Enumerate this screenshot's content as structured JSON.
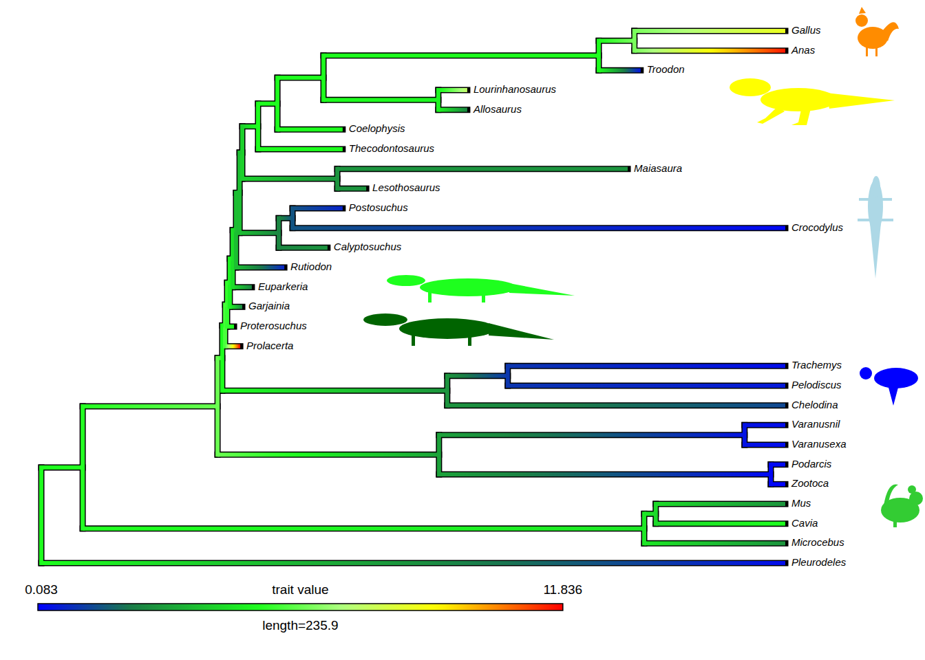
{
  "chart_data": {
    "type": "tree",
    "color_range": [
      0.083,
      11.836
    ],
    "color_label": "trait value",
    "scale_bar": {
      "value": 235.9,
      "label": "length=235.9"
    },
    "tree": {
      "depth": 0,
      "value": 5.0,
      "children": [
        {
          "depth": 18.6,
          "value": 5.1,
          "children": [
            {
              "depth": 79.2,
              "value": 6.0,
              "children": [
                {
                  "depth": 81.3,
                  "value": 5.0,
                  "children": [
                    {
                      "depth": 82.6,
                      "value": 5.6,
                      "children": [
                        {
                          "depth": 83.5,
                          "value": 5.3,
                          "children": [
                            {
                              "depth": 84.7,
                              "value": 4.8,
                              "children": [
                                {
                                  "depth": 86.0,
                                  "value": 4.3,
                                  "children": [
                                    {
                                      "depth": 87.5,
                                      "value": 3.6,
                                      "children": [
                                        {
                                          "depth": 89.1,
                                          "value": 3.6,
                                          "children": [
                                            {
                                              "depth": 90.3,
                                              "value": 4.0,
                                              "children": [
                                                {
                                                  "depth": 97.4,
                                                  "value": 5.0,
                                                  "children": [
                                                    {
                                                      "depth": 106.1,
                                                      "value": 5.0,
                                                      "children": [
                                                        {
                                                          "depth": 126.8,
                                                          "value": 5.0,
                                                          "children": [
                                                            {
                                                              "depth": 250.5,
                                                              "value": 5.0,
                                                              "children": [
                                                                {
                                                                  "depth": 266.5,
                                                                  "value": 6.2,
                                                                  "children": [
                                                                    {
                                                                      "label": "Gallus",
                                                                      "depth": 334.3,
                                                                      "value": 8.5
                                                                    },
                                                                    {
                                                                      "label": "Anas",
                                                                      "depth": 334.3,
                                                                      "value": 11.6
                                                                    }
                                                                  ]
                                                                },
                                                                {
                                                                  "label": "Troodon",
                                                                  "depth": 269.3,
                                                                  "value": 0.4
                                                                }
                                                              ]
                                                            },
                                                            {
                                                              "depth": 178.4,
                                                              "value": 4.8,
                                                              "children": [
                                                                {
                                                                  "label": "Lourinhanosaurus",
                                                                  "depth": 191.4,
                                                                  "value": 7.4
                                                                },
                                                                {
                                                                  "label": "Allosaurus",
                                                                  "depth": 191.4,
                                                                  "value": 2.4
                                                                }
                                                              ]
                                                            }
                                                          ]
                                                        },
                                                        {
                                                          "label": "Coelophysis",
                                                          "depth": 135.4,
                                                          "value": 5.0
                                                        }
                                                      ]
                                                    },
                                                    {
                                                      "label": "Thecodontosaurus",
                                                      "depth": 135.4,
                                                      "value": 5.0
                                                    }
                                                  ]
                                                },
                                                {
                                                  "depth": 133.0,
                                                  "value": 2.7,
                                                  "children": [
                                                    {
                                                      "label": "Maiasaura",
                                                      "depth": 263.5,
                                                      "value": 2.7
                                                    },
                                                    {
                                                      "label": "Lesothosaurus",
                                                      "depth": 146.0,
                                                      "value": 2.7
                                                    }
                                                  ]
                                                }
                                              ]
                                            },
                                            {
                                              "depth": 106.7,
                                              "value": 2.4,
                                              "children": [
                                                {
                                                  "depth": 112.9,
                                                  "value": 1.5,
                                                  "children": [
                                                    {
                                                      "label": "Postosuchus",
                                                      "depth": 135.4,
                                                      "value": 0.7
                                                    },
                                                    {
                                                      "label": "Crocodylus",
                                                      "depth": 334.3,
                                                      "value": 0.2
                                                    }
                                                  ]
                                                },
                                                {
                                                  "label": "Calyptosuchus",
                                                  "depth": 128.6,
                                                  "value": 2.7
                                                }
                                              ]
                                            }
                                          ]
                                        },
                                        {
                                          "label": "Rutiodon",
                                          "depth": 109.2,
                                          "value": 0.7
                                        }
                                      ]
                                    },
                                    {
                                      "label": "Euparkeria",
                                      "depth": 94.6,
                                      "value": 2.4
                                    }
                                  ]
                                },
                                {
                                  "label": "Garjainia",
                                  "depth": 90.3,
                                  "value": 2.4
                                }
                              ]
                            },
                            {
                              "label": "Proterosuchus",
                              "depth": 86.6,
                              "value": 5.0
                            }
                          ]
                        },
                        {
                          "label": "Prolacerta",
                          "depth": 89.4,
                          "value": 11.836
                        }
                      ]
                    },
                    {
                      "depth": 182.4,
                      "value": 2.7,
                      "children": [
                        {
                          "depth": 209.6,
                          "value": 1.0,
                          "children": [
                            {
                              "label": "Trachemys",
                              "depth": 334.3,
                              "value": 0.3
                            },
                            {
                              "label": "Pelodiscus",
                              "depth": 334.3,
                              "value": 0.5
                            }
                          ]
                        },
                        {
                          "label": "Chelodina",
                          "depth": 334.3,
                          "value": 1.3
                        }
                      ]
                    }
                  ]
                },
                {
                  "depth": 178.7,
                  "value": 3.0,
                  "children": [
                    {
                      "depth": 316.0,
                      "value": 0.4,
                      "children": [
                        {
                          "label": "Varanusnil",
                          "depth": 334.3,
                          "value": 0.3
                        },
                        {
                          "label": "Varanusexa",
                          "depth": 334.3,
                          "value": 0.3
                        }
                      ]
                    },
                    {
                      "depth": 327.8,
                      "value": 0.2,
                      "children": [
                        {
                          "label": "Podarcis",
                          "depth": 334.3,
                          "value": 0.25
                        },
                        {
                          "label": "Zootoca",
                          "depth": 334.3,
                          "value": 0.083
                        }
                      ]
                    }
                  ]
                }
              ]
            },
            {
              "depth": 270.9,
              "value": 4.5,
              "children": [
                {
                  "depth": 276.1,
                  "value": 4.2,
                  "children": [
                    {
                      "label": "Mus",
                      "depth": 334.3,
                      "value": 2.7
                    },
                    {
                      "label": "Cavia",
                      "depth": 334.3,
                      "value": 5.0
                    }
                  ]
                },
                {
                  "label": "Microcebus",
                  "depth": 334.3,
                  "value": 2.7
                }
              ]
            }
          ]
        },
        {
          "label": "Pleurodeles",
          "depth": 334.3,
          "value": 0.3
        }
      ]
    }
  }
}
